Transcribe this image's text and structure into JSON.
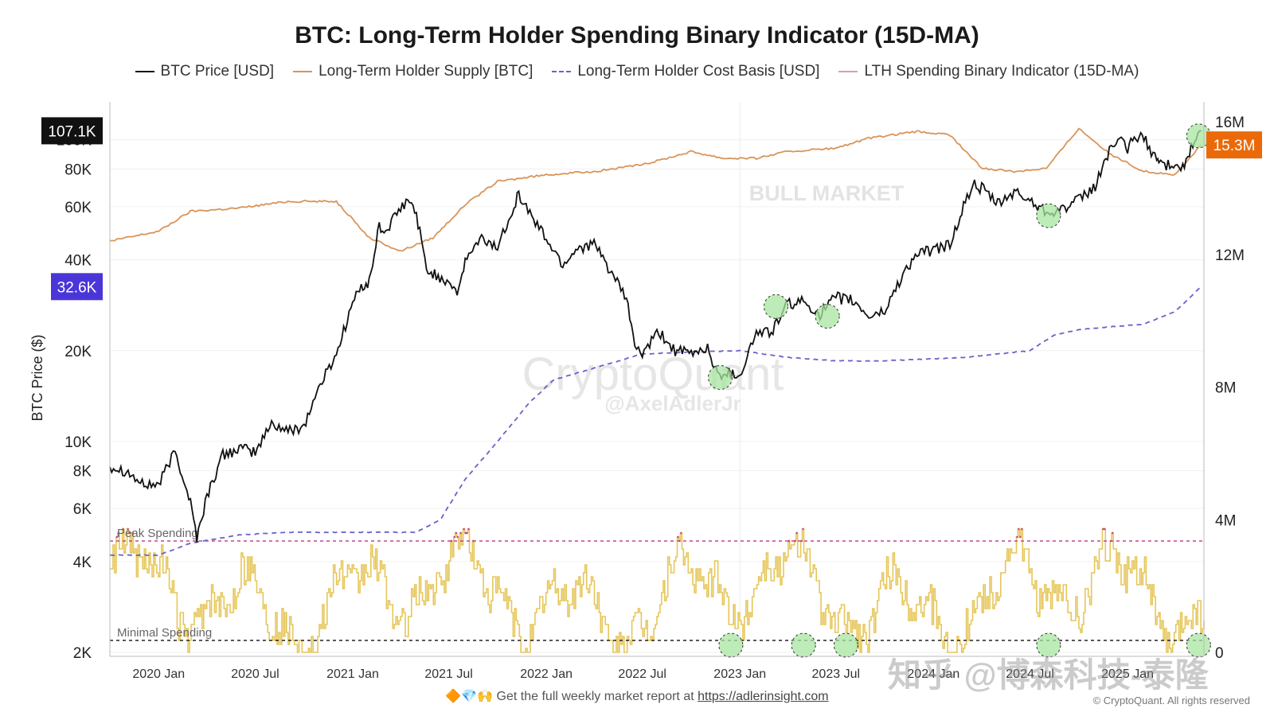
{
  "chart_data": {
    "type": "line",
    "title": "BTC: Long-Term Holder Spending Binary Indicator (15D-MA)",
    "ylabel": "BTC Price ($)",
    "y_scale": "log",
    "ylim": [
      2000,
      110000
    ],
    "y2lim": [
      0,
      16000000
    ],
    "x_ticks": [
      "2020 Jan",
      "2020 Jul",
      "2021 Jan",
      "2021 Jul",
      "2022 Jan",
      "2022 Jul",
      "2023 Jan",
      "2023 Jul",
      "2024 Jan",
      "2024 Jul",
      "2025 Jan"
    ],
    "y_ticks": [
      "2K",
      "4K",
      "6K",
      "8K",
      "10K",
      "20K",
      "40K",
      "60K",
      "80K",
      "100K"
    ],
    "y2_ticks": [
      "0",
      "4M",
      "8M",
      "12M",
      "16M"
    ],
    "series": [
      {
        "name": "BTC Price [USD]",
        "color": "#111111",
        "x": [
          "2019-10-01",
          "2019-11-01",
          "2019-12-01",
          "2020-01-01",
          "2020-02-01",
          "2020-03-01",
          "2020-03-13",
          "2020-04-01",
          "2020-05-01",
          "2020-06-01",
          "2020-07-01",
          "2020-08-01",
          "2020-09-01",
          "2020-10-01",
          "2020-11-01",
          "2020-12-01",
          "2021-01-01",
          "2021-01-20",
          "2021-02-01",
          "2021-02-20",
          "2021-03-01",
          "2021-04-01",
          "2021-04-15",
          "2021-05-01",
          "2021-05-20",
          "2021-06-01",
          "2021-07-01",
          "2021-07-20",
          "2021-08-01",
          "2021-09-01",
          "2021-10-01",
          "2021-11-01",
          "2021-11-10",
          "2021-12-01",
          "2022-01-01",
          "2022-02-01",
          "2022-03-01",
          "2022-04-01",
          "2022-05-01",
          "2022-06-01",
          "2022-06-20",
          "2022-07-01",
          "2022-08-01",
          "2022-09-01",
          "2022-10-01",
          "2022-11-01",
          "2022-11-20",
          "2022-12-01",
          "2023-01-01",
          "2023-02-01",
          "2023-03-01",
          "2023-04-01",
          "2023-05-01",
          "2023-06-01",
          "2023-07-01",
          "2023-08-01",
          "2023-09-01",
          "2023-10-01",
          "2023-11-01",
          "2023-12-01",
          "2024-01-01",
          "2024-02-01",
          "2024-03-01",
          "2024-03-15",
          "2024-04-01",
          "2024-05-01",
          "2024-06-01",
          "2024-07-01",
          "2024-08-01",
          "2024-09-01",
          "2024-10-01",
          "2024-11-01",
          "2024-12-01",
          "2024-12-20",
          "2025-01-01",
          "2025-01-20",
          "2025-02-01",
          "2025-02-25",
          "2025-03-01",
          "2025-03-15",
          "2025-04-01",
          "2025-04-15",
          "2025-05-01",
          "2025-05-20"
        ],
        "values": [
          8300,
          8000,
          7200,
          7200,
          9300,
          6300,
          4800,
          6600,
          9000,
          9500,
          9200,
          11500,
          10800,
          11300,
          15500,
          19500,
          29000,
          33000,
          33500,
          52000,
          49000,
          58800,
          63000,
          57000,
          37000,
          36000,
          34000,
          31000,
          40000,
          47000,
          44000,
          61000,
          66000,
          57000,
          47000,
          38500,
          44000,
          45000,
          37000,
          29500,
          20000,
          19500,
          23000,
          20000,
          19500,
          20500,
          16500,
          17000,
          16600,
          23000,
          23000,
          28500,
          29000,
          26500,
          30000,
          29300,
          26000,
          27000,
          35000,
          42000,
          43000,
          45000,
          62000,
          71000,
          69000,
          61000,
          67000,
          63000,
          58000,
          59000,
          63000,
          70000,
          96000,
          98000,
          94000,
          103000,
          101000,
          86000,
          85000,
          82000,
          85000,
          80000,
          94000,
          107100
        ]
      },
      {
        "name": "Long-Term Holder Supply [BTC]",
        "color": "#d8955a",
        "x": [
          "2019-10-01",
          "2020-01-01",
          "2020-03-01",
          "2020-06-01",
          "2020-09-01",
          "2020-12-01",
          "2021-02-01",
          "2021-04-01",
          "2021-06-01",
          "2021-08-01",
          "2021-10-01",
          "2022-01-01",
          "2022-04-01",
          "2022-07-01",
          "2022-10-01",
          "2022-12-01",
          "2023-02-01",
          "2023-04-01",
          "2023-07-01",
          "2023-09-01",
          "2023-12-01",
          "2024-02-01",
          "2024-04-01",
          "2024-06-01",
          "2024-08-01",
          "2024-10-01",
          "2024-12-01",
          "2025-02-01",
          "2025-04-01",
          "2025-05-20"
        ],
        "values": [
          12400000,
          12700000,
          13300000,
          13400000,
          13600000,
          13600000,
          12500000,
          12100000,
          12500000,
          13500000,
          14200000,
          14400000,
          14500000,
          14700000,
          15100000,
          14900000,
          14900000,
          15100000,
          15200000,
          15500000,
          15700000,
          15600000,
          14600000,
          14500000,
          14600000,
          15800000,
          15000000,
          14500000,
          14400000,
          15300000
        ]
      },
      {
        "name": "Long-Term Holder Cost Basis [USD]",
        "color": "#6a62c9",
        "dashed": true,
        "x": [
          "2019-10-01",
          "2020-01-01",
          "2020-03-01",
          "2020-06-01",
          "2020-09-01",
          "2020-12-01",
          "2021-03-01",
          "2021-05-01",
          "2021-06-15",
          "2021-08-01",
          "2021-10-01",
          "2021-12-01",
          "2022-01-15",
          "2022-04-01",
          "2022-07-01",
          "2022-10-01",
          "2023-01-01",
          "2023-04-01",
          "2023-07-01",
          "2023-10-01",
          "2024-01-01",
          "2024-03-01",
          "2024-05-01",
          "2024-07-01",
          "2024-08-15",
          "2024-10-01",
          "2024-12-01",
          "2025-02-01",
          "2025-04-01",
          "2025-05-20"
        ],
        "values": [
          4200,
          4200,
          4600,
          4900,
          5000,
          5000,
          5000,
          5000,
          5500,
          7500,
          10000,
          13500,
          16000,
          17500,
          19500,
          19800,
          20000,
          19000,
          18500,
          18500,
          18800,
          19000,
          19500,
          20000,
          22500,
          23500,
          24000,
          24500,
          27000,
          32600
        ]
      },
      {
        "name": "LTH Spending Binary Indicator (15D-MA)",
        "color": "#d8a0b0"
      }
    ],
    "annotations": [
      "Peak Spending",
      "Minimal Spending",
      "BULL MARKET"
    ],
    "watermarks": [
      "CryptoQuant",
      "@AxelAdlerJr"
    ],
    "value_tags": [
      "107.1K",
      "32.6K",
      "15.3M"
    ]
  },
  "footer": {
    "text": "🔶💎🙌 Get the full weekly market report at ",
    "link": "https://adlerinsight.com",
    "copyright": "© CryptoQuant. All rights reserved"
  },
  "colors": {
    "price": "#111111",
    "supply": "#d8955a",
    "cost_basis": "#6a62c9",
    "indicator": "#e6c65a",
    "indicator_peak": "#c2458e",
    "circle_fill": "#a8e6a0",
    "tag_price": "#111111",
    "tag_cost": "#4a36d8",
    "tag_supply": "#ea6a0a"
  },
  "overlay_watermark": "知乎 @博森科技-泰隆"
}
